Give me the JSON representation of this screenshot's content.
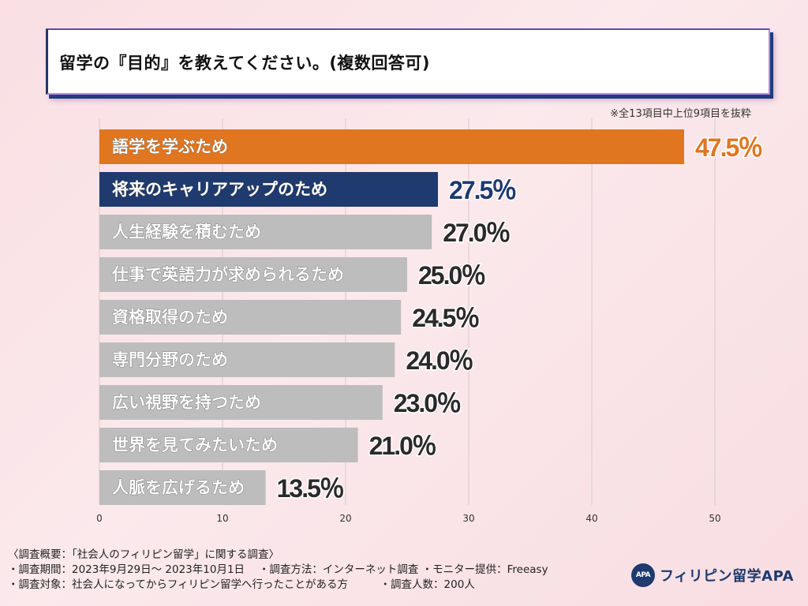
{
  "header": {
    "title": "留学の『目的』を教えてください。(複数回答可)",
    "note": "※全13項目中上位9項目を抜粋"
  },
  "chart_data": {
    "type": "bar",
    "orientation": "horizontal",
    "categories": [
      "語学を学ぶため",
      "将来のキャリアアップのため",
      "人生経験を積むため",
      "仕事で英語力が求められるため",
      "資格取得のため",
      "専門分野のため",
      "広い視野を持つため",
      "世界を見てみたいため",
      "人脈を広げるため"
    ],
    "values": [
      47.5,
      27.5,
      27.0,
      25.0,
      24.5,
      24.0,
      23.0,
      21.0,
      13.5
    ],
    "value_labels": [
      "47.5％",
      "27.5％",
      "27.0％",
      "25.0％",
      "24.5％",
      "24.0％",
      "23.0％",
      "21.0％",
      "13.5％"
    ],
    "bar_colors": [
      "#e0761f",
      "#1e3a6e",
      "#bdbdbd",
      "#bdbdbd",
      "#bdbdbd",
      "#bdbdbd",
      "#bdbdbd",
      "#bdbdbd",
      "#bdbdbd"
    ],
    "label_colors": [
      "#e0761f",
      "#1e3a6e",
      "#2a2a2a",
      "#2a2a2a",
      "#2a2a2a",
      "#2a2a2a",
      "#2a2a2a",
      "#2a2a2a",
      "#2a2a2a"
    ],
    "xlim": [
      0,
      55
    ],
    "xticks": [
      0,
      10,
      20,
      30,
      40,
      50
    ],
    "xtick_labels": [
      "0",
      "10",
      "20",
      "30",
      "40",
      "50"
    ],
    "grid": true
  },
  "footer": {
    "line1": "〈調査概要：「社会人のフィリピン留学」に関する調査〉",
    "line2": "・調査期間：2023年9月29日〜 2023年10月1日　 ・調査方法：インターネット調査 ・モニター提供：Freeasy",
    "line3": "・調査対象：社会人になってからフィリピン留学へ行ったことがある方　　　・調査人数：200人"
  },
  "logo": {
    "badge": "APA",
    "text": "フィリピン留学APA"
  }
}
